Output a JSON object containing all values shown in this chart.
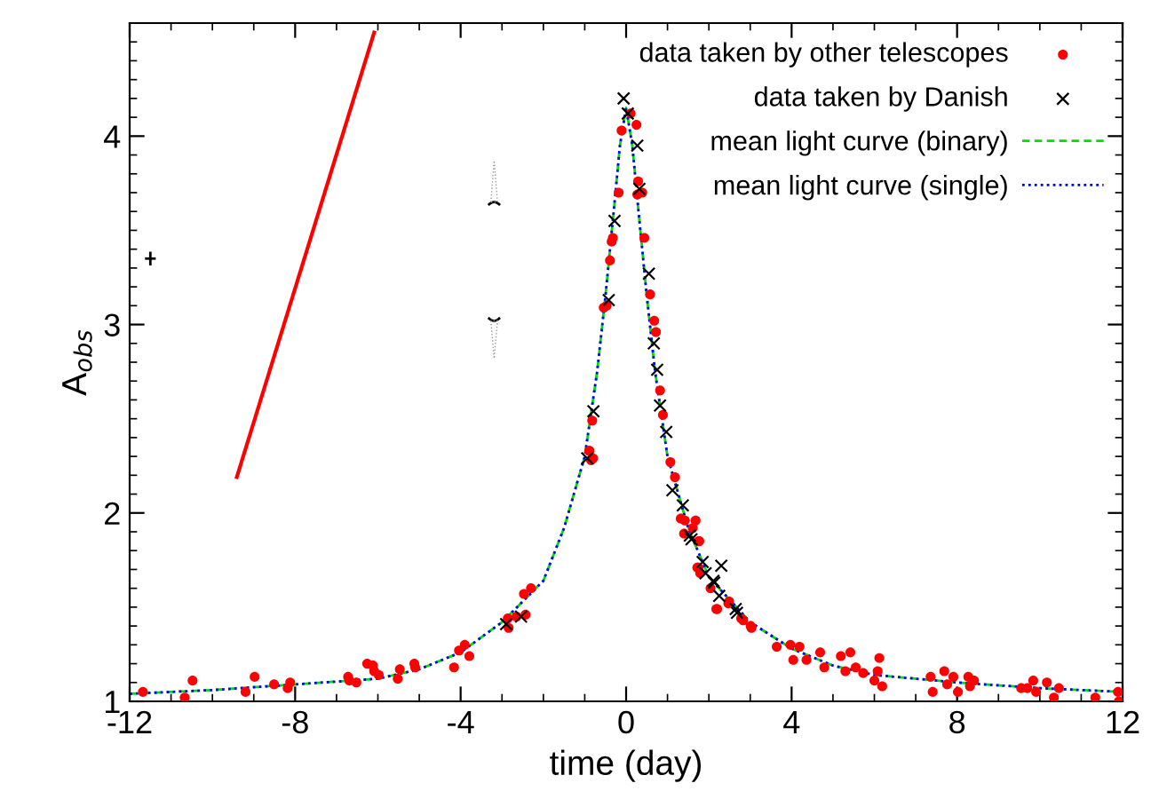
{
  "chart_data": {
    "type": "scatter",
    "xlabel": "time (day)",
    "ylabel": "A$_{obs}$",
    "xlim": [
      -12,
      12
    ],
    "xticks": [
      -12,
      -8,
      -4,
      0,
      4,
      8,
      12
    ],
    "ylim": [
      1,
      4.6
    ],
    "yticks": [
      1,
      2,
      3,
      4
    ],
    "grid": false,
    "legend": "top right",
    "series": [
      {
        "name": "data taken by other telescopes",
        "marker": "circle",
        "color": "#ff0000",
        "x": [
          -11.68,
          -10.67,
          -10.48,
          -9.2,
          -8.98,
          -8.51,
          -8.18,
          -8.12,
          -6.72,
          -6.69,
          -6.52,
          -6.26,
          -6.12,
          -6.09,
          -5.98,
          -5.52,
          -5.47,
          -5.12,
          -5.1,
          -4.16,
          -4.04,
          -3.9,
          -3.79,
          -2.86,
          -2.84,
          -2.65,
          -2.43,
          -2.47,
          -2.3,
          -0.89,
          -0.85,
          -0.54,
          -0.47,
          -0.39,
          -0.35,
          -0.32,
          -0.18,
          -0.11,
          0.11,
          0.25,
          0.29,
          0.27,
          0.39,
          0.44,
          0.58,
          0.68,
          0.72,
          0.82,
          0.89,
          1.07,
          1.18,
          -0.82,
          -0.89,
          -0.8,
          1.42,
          1.61,
          1.75,
          1.72,
          1.79,
          2.18,
          2.47,
          2.78,
          3.01,
          1.32,
          1.68,
          1.4,
          1.77,
          1.75,
          2.04,
          2.2,
          2.49,
          2.83,
          3.03,
          3.64,
          3.97,
          4.04,
          4.19,
          4.36,
          4.69,
          4.79,
          5.19,
          5.42,
          5.3,
          5.55,
          5.73,
          6.08,
          6.12,
          6.0,
          6.19,
          7.36,
          7.41,
          7.69,
          7.76,
          7.91,
          8.02,
          8.27,
          8.31,
          8.41,
          9.55,
          9.7,
          9.84,
          9.91,
          10.17,
          10.34,
          10.46,
          11.34,
          11.89,
          11.91
        ],
        "values": [
          1.05,
          1.02,
          1.11,
          1.05,
          1.13,
          1.09,
          1.07,
          1.1,
          1.13,
          1.11,
          1.1,
          1.2,
          1.19,
          1.16,
          1.14,
          1.12,
          1.17,
          1.2,
          1.18,
          1.18,
          1.27,
          1.3,
          1.24,
          1.44,
          1.39,
          1.45,
          1.46,
          1.57,
          1.6,
          2.33,
          2.28,
          3.09,
          3.1,
          3.34,
          3.44,
          3.46,
          3.7,
          4.03,
          4.12,
          4.06,
          3.76,
          3.69,
          3.7,
          3.46,
          3.16,
          3.02,
          2.96,
          2.65,
          2.52,
          2.27,
          2.19,
          2.49,
          2.33,
          2.29,
          1.96,
          1.92,
          1.85,
          1.71,
          1.68,
          1.49,
          1.52,
          1.44,
          1.4,
          1.97,
          1.96,
          1.89,
          1.85,
          1.71,
          1.6,
          1.49,
          1.53,
          1.43,
          1.39,
          1.29,
          1.3,
          1.22,
          1.29,
          1.22,
          1.26,
          1.18,
          1.24,
          1.26,
          1.16,
          1.18,
          1.15,
          1.16,
          1.23,
          1.11,
          1.08,
          1.13,
          1.05,
          1.16,
          1.09,
          1.13,
          1.05,
          1.13,
          1.08,
          1.11,
          1.07,
          1.07,
          1.11,
          1.05,
          1.1,
          1.02,
          1.07,
          1.02,
          1.05,
          1.0
        ]
      },
      {
        "name": "data taken by Danish",
        "marker": "cross",
        "color": "#000000",
        "x": [
          -0.06,
          0.04,
          0.27,
          0.32,
          -0.28,
          0.55,
          -0.42,
          0.67,
          0.75,
          0.82,
          0.97,
          -0.79,
          -0.94,
          1.12,
          1.37,
          1.54,
          1.85,
          2.3,
          2.11,
          2.25,
          2.65,
          1.58,
          1.92,
          2.13,
          2.68,
          -2.9,
          -2.54
        ],
        "values": [
          4.2,
          4.12,
          3.95,
          3.72,
          3.55,
          3.27,
          3.13,
          2.9,
          2.76,
          2.57,
          2.43,
          2.54,
          2.29,
          2.12,
          2.04,
          1.88,
          1.74,
          1.72,
          1.64,
          1.56,
          1.49,
          1.86,
          1.68,
          1.63,
          1.47,
          1.41,
          1.45
        ]
      },
      {
        "name": "mean light curve (binary)",
        "type": "line",
        "line_style": "dashed",
        "marker": "none",
        "color": "#00dd00",
        "x": [
          -12,
          -10,
          -8,
          -6,
          -5,
          -4,
          -3,
          -2,
          -1.5,
          -1,
          -0.7,
          -0.5,
          -0.3,
          -0.15,
          0,
          0.15,
          0.3,
          0.5,
          0.7,
          1,
          1.5,
          2,
          3,
          4,
          5,
          6,
          8,
          10,
          12
        ],
        "values": [
          1.04,
          1.06,
          1.09,
          1.12,
          1.17,
          1.26,
          1.42,
          1.64,
          1.92,
          2.3,
          2.75,
          3.15,
          3.6,
          3.95,
          4.15,
          3.95,
          3.6,
          3.15,
          2.75,
          2.3,
          1.92,
          1.66,
          1.42,
          1.28,
          1.19,
          1.14,
          1.1,
          1.07,
          1.05
        ]
      },
      {
        "name": "mean light curve (single)",
        "type": "line",
        "line_style": "dotted",
        "marker": "none",
        "color": "#0000ff",
        "x": [
          -12,
          -10,
          -8,
          -6,
          -5,
          -4,
          -3,
          -2,
          -1.5,
          -1,
          -0.7,
          -0.5,
          -0.3,
          -0.15,
          0,
          0.15,
          0.3,
          0.5,
          0.7,
          1,
          1.5,
          2,
          3,
          4,
          5,
          6,
          8,
          10,
          12
        ],
        "values": [
          1.04,
          1.06,
          1.09,
          1.12,
          1.17,
          1.26,
          1.42,
          1.64,
          1.92,
          2.3,
          2.75,
          3.15,
          3.6,
          3.95,
          4.15,
          3.95,
          3.6,
          3.15,
          2.75,
          2.3,
          1.92,
          1.66,
          1.42,
          1.28,
          1.19,
          1.14,
          1.1,
          1.07,
          1.05
        ]
      },
      {
        "type": "line",
        "line_style": "solid",
        "marker": "none",
        "color": "#ff0000",
        "x": [
          -9.41,
          -6.09
        ],
        "values": [
          2.19,
          4.55
        ]
      }
    ]
  }
}
